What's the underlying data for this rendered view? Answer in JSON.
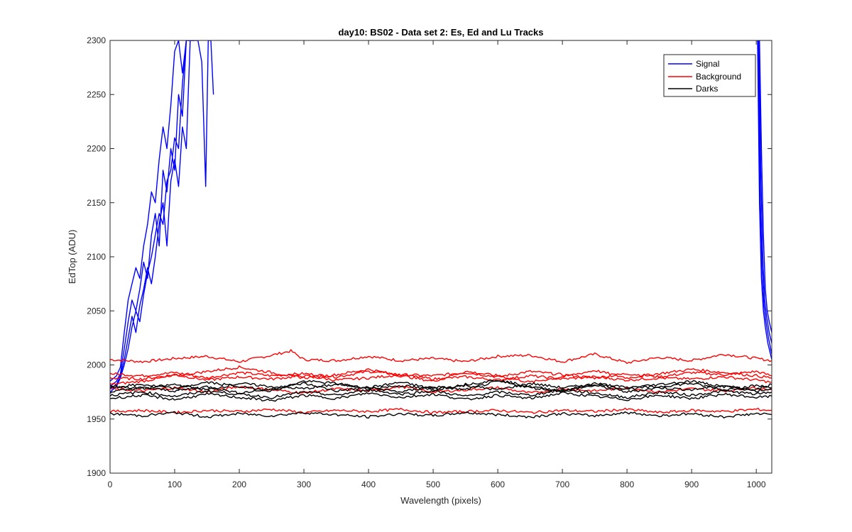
{
  "chart_data": {
    "type": "line",
    "title": "day10: BS02 - Data set 2: Es, Ed and Lu Tracks",
    "xlabel": "Wavelength (pixels)",
    "ylabel": "EdTop (ADU)",
    "xlim": [
      0,
      1024
    ],
    "ylim": [
      1900,
      2300
    ],
    "xticks": [
      0,
      100,
      200,
      300,
      400,
      500,
      600,
      700,
      800,
      900,
      1000
    ],
    "yticks": [
      1900,
      1950,
      2000,
      2050,
      2100,
      2150,
      2200,
      2250,
      2300
    ],
    "grid": false,
    "legend_position": "top-right",
    "colors": {
      "signal": "#0000ff",
      "background": "#ff0000",
      "darks": "#000000"
    },
    "series": [
      {
        "name": "Signal",
        "color": "#0000ff",
        "lines": [
          {
            "x": [
              0,
              10,
              16,
              22,
              28,
              34,
              40,
              46,
              52,
              58,
              64,
              70,
              76,
              82,
              88,
              94,
              100,
              106,
              112,
              118,
              124,
              130,
              136,
              142,
              148,
              152,
              156,
              160
            ],
            "y": [
              1985,
              1990,
              1998,
              2030,
              2060,
              2075,
              2090,
              2080,
              2110,
              2130,
              2160,
              2150,
              2190,
              2220,
              2200,
              2240,
              2290,
              2300,
              2270,
              2300,
              2300,
              2300,
              2300,
              2280,
              2165,
              2300,
              2300,
              2250
            ]
          },
          {
            "x": [
              0,
              10,
              16,
              22,
              28,
              34,
              40,
              46,
              52,
              58,
              64,
              70,
              76,
              82,
              88,
              94,
              100,
              106,
              112,
              118,
              124,
              130
            ],
            "y": [
              1980,
              1985,
              1992,
              2015,
              2040,
              2060,
              2050,
              2070,
              2095,
              2080,
              2120,
              2140,
              2110,
              2180,
              2160,
              2200,
              2180,
              2250,
              2230,
              2300,
              2300,
              2300
            ]
          },
          {
            "x": [
              0,
              10,
              16,
              22,
              28,
              34,
              40,
              46,
              52,
              58,
              64,
              70,
              76,
              82,
              88,
              94,
              100,
              106,
              112,
              118,
              124
            ],
            "y": [
              1978,
              1982,
              1990,
              2005,
              2025,
              2045,
              2030,
              2055,
              2070,
              2090,
              2075,
              2100,
              2130,
              2150,
              2110,
              2170,
              2190,
              2165,
              2220,
              2200,
              2300
            ]
          },
          {
            "x": [
              0,
              10,
              16,
              22,
              28,
              34,
              40,
              46,
              52,
              58,
              64,
              70,
              76,
              82,
              88,
              94,
              100,
              106,
              112,
              118
            ],
            "y": [
              1975,
              1980,
              1988,
              2000,
              2015,
              2035,
              2050,
              2040,
              2065,
              2085,
              2100,
              2120,
              2140,
              2130,
              2170,
              2180,
              2210,
              2200,
              2260,
              2300
            ]
          },
          {
            "x": [
              1005,
              1008,
              1011,
              1014,
              1017,
              1020,
              1024
            ],
            "y": [
              2300,
              2200,
              2120,
              2070,
              2050,
              2040,
              2030
            ]
          },
          {
            "x": [
              1004,
              1007,
              1010,
              1013,
              1016,
              1020,
              1024
            ],
            "y": [
              2300,
              2180,
              2100,
              2060,
              2045,
              2030,
              2020
            ]
          },
          {
            "x": [
              1003,
              1006,
              1009,
              1012,
              1015,
              1019,
              1024
            ],
            "y": [
              2300,
              2160,
              2090,
              2055,
              2040,
              2025,
              2010
            ]
          },
          {
            "x": [
              1002,
              1005,
              1008,
              1011,
              1014,
              1018,
              1024
            ],
            "y": [
              2300,
              2150,
              2080,
              2050,
              2035,
              2020,
              2005
            ]
          }
        ]
      },
      {
        "name": "Background",
        "color": "#ff0000",
        "lines": [
          {
            "x": [
              0,
              50,
              100,
              150,
              200,
              250,
              280,
              300,
              350,
              400,
              450,
              500,
              550,
              600,
              650,
              700,
              750,
              800,
              850,
              900,
              950,
              1000,
              1024
            ],
            "y": [
              2005,
              2003,
              2006,
              2008,
              2003,
              2009,
              2013,
              2005,
              2004,
              2008,
              2004,
              2006,
              2003,
              2008,
              2009,
              2003,
              2010,
              2002,
              2007,
              2004,
              2010,
              2006,
              2004
            ]
          },
          {
            "x": [
              0,
              50,
              100,
              150,
              200,
              250,
              300,
              350,
              400,
              450,
              500,
              550,
              600,
              650,
              700,
              750,
              800,
              850,
              900,
              950,
              1000,
              1024
            ],
            "y": [
              1992,
              1990,
              1993,
              1988,
              1993,
              1990,
              1992,
              1989,
              1994,
              1991,
              1990,
              1993,
              1989,
              1994,
              1991,
              1988,
              1992,
              1989,
              1993,
              1991,
              1994,
              1990
            ]
          },
          {
            "x": [
              0,
              50,
              100,
              150,
              200,
              250,
              300,
              350,
              400,
              450,
              500,
              550,
              600,
              650,
              700,
              750,
              800,
              850,
              900,
              950,
              1000,
              1024
            ],
            "y": [
              1988,
              1987,
              1991,
              1986,
              1989,
              1987,
              1990,
              1986,
              1988,
              1991,
              1987,
              1989,
              1986,
              1990,
              1987,
              1989,
              1986,
              1988,
              1987,
              1989,
              1986,
              1984
            ]
          },
          {
            "x": [
              0,
              50,
              100,
              150,
              200,
              250,
              300,
              350,
              400,
              450,
              500,
              550,
              600,
              650,
              700,
              750,
              800,
              850,
              900,
              950,
              1000,
              1024
            ],
            "y": [
              1982,
              1985,
              1990,
              1994,
              1998,
              1993,
              1988,
              1991,
              1996,
              1990,
              1985,
              1994,
              1990,
              1984,
              1989,
              1995,
              1988,
              1992,
              1996,
              1993,
              1990,
              1988
            ]
          },
          {
            "x": [
              0,
              50,
              100,
              150,
              200,
              250,
              300,
              350,
              400,
              450,
              500,
              550,
              600,
              650,
              700,
              750,
              800,
              850,
              900,
              950,
              1000,
              1024
            ],
            "y": [
              1978,
              1976,
              1979,
              1975,
              1980,
              1977,
              1974,
              1978,
              1976,
              1980,
              1975,
              1977,
              1979,
              1974,
              1978,
              1976,
              1979,
              1975,
              1978,
              1976,
              1979,
              1977
            ]
          },
          {
            "x": [
              0,
              50,
              100,
              150,
              200,
              250,
              300,
              350,
              400,
              450,
              500,
              550,
              600,
              650,
              700,
              750,
              800,
              850,
              900,
              950,
              1000,
              1024
            ],
            "y": [
              1957,
              1958,
              1956,
              1958,
              1957,
              1959,
              1956,
              1958,
              1957,
              1959,
              1956,
              1957,
              1958,
              1956,
              1958,
              1957,
              1959,
              1956,
              1958,
              1957,
              1959,
              1958
            ]
          }
        ]
      },
      {
        "name": "Darks",
        "color": "#000000",
        "lines": [
          {
            "x": [
              0,
              50,
              100,
              150,
              200,
              250,
              300,
              350,
              400,
              450,
              500,
              550,
              600,
              650,
              700,
              750,
              800,
              850,
              900,
              950,
              1000,
              1024
            ],
            "y": [
              1981,
              1978,
              1982,
              1977,
              1983,
              1980,
              1978,
              1982,
              1979,
              1984,
              1978,
              1981,
              1977,
              1983,
              1979,
              1982,
              1978,
              1980,
              1983,
              1977,
              1981,
              1979
            ]
          },
          {
            "x": [
              0,
              50,
              100,
              150,
              200,
              250,
              300,
              350,
              400,
              450,
              500,
              550,
              600,
              650,
              700,
              750,
              800,
              850,
              900,
              950,
              1000,
              1024
            ],
            "y": [
              1975,
              1979,
              1976,
              1980,
              1974,
              1978,
              1983,
              1976,
              1979,
              1975,
              1980,
              1977,
              1985,
              1979,
              1976,
              1981,
              1975,
              1979,
              1977,
              1981,
              1976,
              1978
            ]
          },
          {
            "x": [
              0,
              50,
              100,
              150,
              200,
              250,
              300,
              350,
              400,
              450,
              500,
              550,
              600,
              650,
              700,
              750,
              800,
              850,
              900,
              950,
              1000,
              1024
            ],
            "y": [
              1972,
              1975,
              1971,
              1976,
              1973,
              1970,
              1975,
              1972,
              1977,
              1973,
              1976,
              1971,
              1975,
              1972,
              1977,
              1974,
              1970,
              1975,
              1972,
              1976,
              1973,
              1975
            ]
          },
          {
            "x": [
              0,
              50,
              100,
              150,
              200,
              250,
              300,
              350,
              400,
              450,
              500,
              550,
              600,
              650,
              700,
              750,
              800,
              850,
              900,
              950,
              1000,
              1024
            ],
            "y": [
              1969,
              1972,
              1968,
              1973,
              1970,
              1967,
              1972,
              1969,
              1974,
              1970,
              1973,
              1968,
              1972,
              1969,
              1974,
              1971,
              1968,
              1972,
              1969,
              1973,
              1970,
              1971
            ]
          },
          {
            "x": [
              0,
              50,
              100,
              150,
              200,
              250,
              300,
              350,
              400,
              450,
              500,
              550,
              600,
              650,
              700,
              750,
              800,
              850,
              900,
              950,
              1000,
              1024
            ],
            "y": [
              1979,
              1982,
              1978,
              1984,
              1980,
              1976,
              1985,
              1983,
              1978,
              1981,
              1977,
              1982,
              1986,
              1980,
              1976,
              1983,
              1979,
              1982,
              1985,
              1980,
              1977,
              1982
            ]
          },
          {
            "x": [
              0,
              50,
              100,
              150,
              200,
              250,
              300,
              350,
              400,
              450,
              500,
              550,
              600,
              650,
              700,
              750,
              800,
              850,
              900,
              950,
              1000,
              1024
            ],
            "y": [
              1955,
              1953,
              1956,
              1952,
              1955,
              1953,
              1956,
              1954,
              1952,
              1955,
              1953,
              1956,
              1954,
              1952,
              1955,
              1953,
              1956,
              1953,
              1955,
              1952,
              1955,
              1954
            ]
          }
        ]
      }
    ]
  }
}
